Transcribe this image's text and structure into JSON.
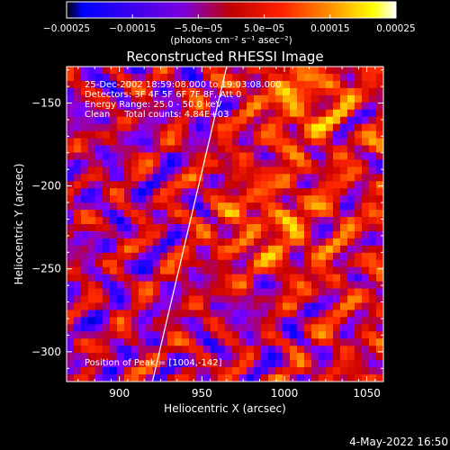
{
  "chart_data": {
    "type": "heatmap",
    "title": "Reconstructed RHESSI Image",
    "xlabel": "Heliocentric X (arcsec)",
    "ylabel": "Heliocentric Y (arcsec)",
    "xlim": [
      868,
      1060
    ],
    "ylim": [
      -318,
      -128
    ],
    "x_ticks": [
      900,
      950,
      1000,
      1050
    ],
    "y_ticks": [
      -150,
      -200,
      -250,
      -300
    ],
    "x_tick_labels": [
      "900",
      "950",
      "1000",
      "1050"
    ],
    "y_tick_labels": [
      "−150",
      "−200",
      "−250",
      "−300"
    ],
    "colorbar": {
      "range": [
        -0.00025,
        0.00025
      ],
      "tick_labels": [
        "−0.00025",
        "−0.00015",
        "−5.0e−05",
        "5.0e−05",
        "0.00015",
        "0.00025"
      ],
      "ticks": [
        -0.00025,
        -0.00015,
        -5e-05,
        5e-05,
        0.00015,
        0.00025
      ],
      "units": "(photons cm⁻² s⁻¹ asec⁻²)",
      "colormap": [
        "#000000",
        "#0000ff",
        "#8000ff",
        "#ff0000",
        "#ff8000",
        "#ffff00",
        "#ffffff"
      ]
    },
    "info": [
      "25-Dec-2002 18:59:08.000 to 19:03:08.000",
      "Detectors: 3F 4F 5F 6F 7F 8F, Att 0",
      "Energy Range: 25.0 - 50.0 keV",
      "Clean     Total counts: 4.84E+03"
    ],
    "peak_label": "Position of Peak = [1004,-142]",
    "limb_line": {
      "x": [
        920,
        965
      ],
      "y": [
        -318,
        -128
      ]
    }
  },
  "timestamp": "4-May-2022 16:50"
}
